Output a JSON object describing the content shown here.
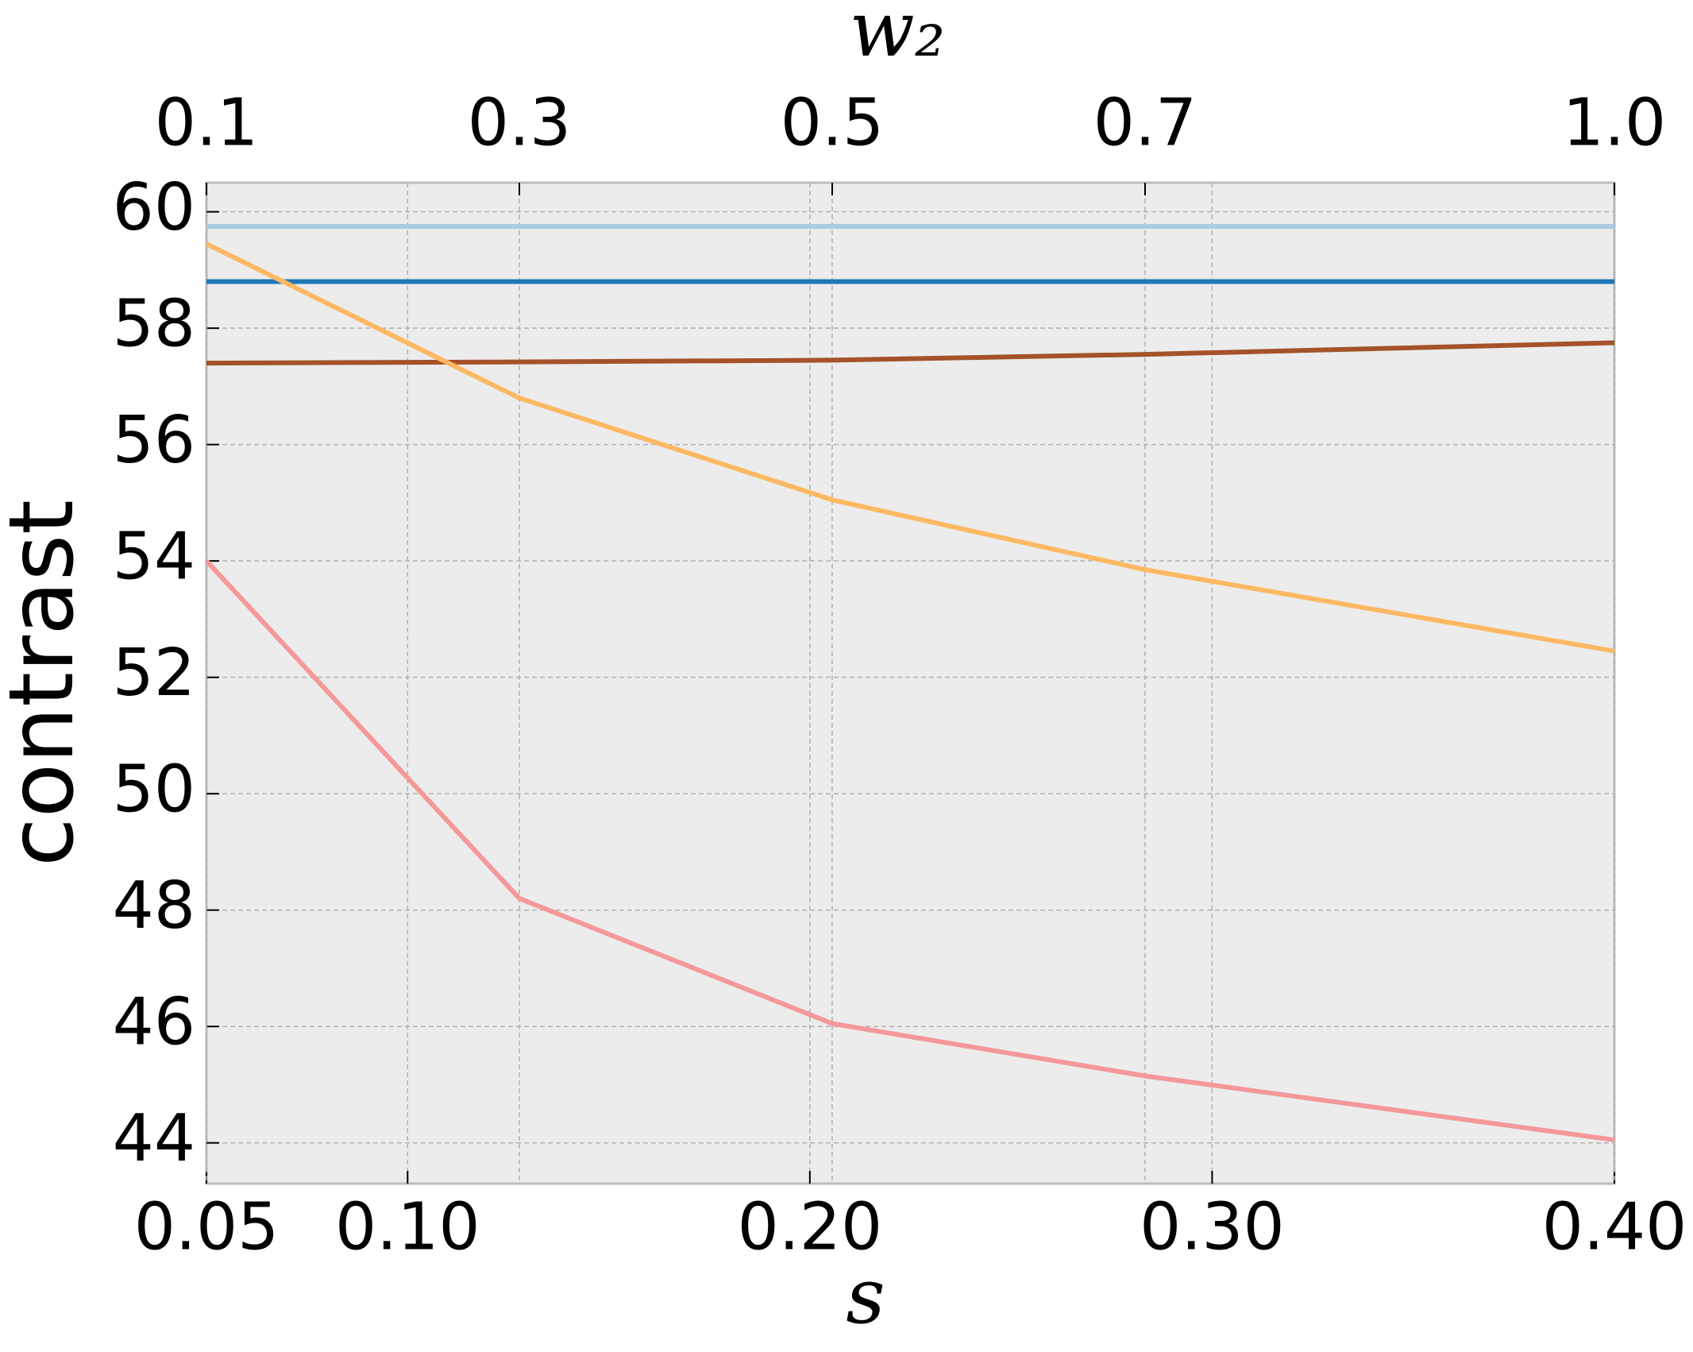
{
  "chart_data": {
    "type": "line",
    "xlabel": "s",
    "ylabel": "contrast",
    "x2label": "w₂",
    "xlim": [
      0.05,
      0.4
    ],
    "xticks": [
      {
        "value": 0.05,
        "label": "0.05"
      },
      {
        "value": 0.1,
        "label": "0.10"
      },
      {
        "value": 0.2,
        "label": "0.20"
      },
      {
        "value": 0.3,
        "label": "0.30"
      },
      {
        "value": 0.4,
        "label": "0.40"
      }
    ],
    "x2lim": [
      0.1,
      1.0
    ],
    "x2ticks": [
      0.1,
      0.3,
      0.5,
      0.7,
      {
        "value": 1.0,
        "label": "1.0"
      }
    ],
    "ylim": [
      43.3,
      60.5
    ],
    "yticks": [
      44,
      46,
      48,
      50,
      52,
      54,
      56,
      58,
      60
    ],
    "grid": true,
    "series": [
      {
        "color": "#a9cbe3",
        "axis": "x2",
        "x": [
          0.1,
          1.0
        ],
        "values": [
          59.75,
          59.75
        ]
      },
      {
        "color": "#2077b4",
        "axis": "x2",
        "x": [
          0.1,
          1.0
        ],
        "values": [
          58.8,
          58.8
        ]
      },
      {
        "color": "#a5522a",
        "axis": "x2",
        "x": [
          0.1,
          0.3,
          0.5,
          0.7,
          1.0
        ],
        "values": [
          57.4,
          57.42,
          57.45,
          57.55,
          57.75
        ]
      },
      {
        "color": "#fdb863",
        "axis": "x2",
        "x": [
          0.1,
          0.3,
          0.5,
          0.7,
          1.0
        ],
        "values": [
          59.45,
          56.8,
          55.05,
          53.85,
          52.45
        ]
      },
      {
        "color": "#f4989a",
        "axis": "x2",
        "x": [
          0.1,
          0.3,
          0.5,
          0.7,
          1.0
        ],
        "values": [
          54.0,
          48.2,
          46.05,
          45.15,
          44.05
        ]
      }
    ]
  }
}
